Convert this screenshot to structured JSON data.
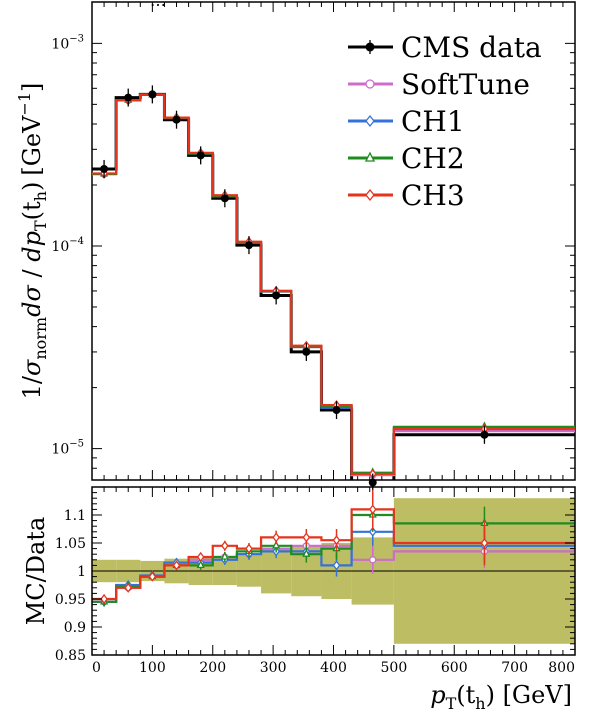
{
  "header_fragment": "…",
  "chart_data": [
    {
      "type": "line",
      "title": "",
      "ylabel_parts": {
        "prefix": "1/",
        "sigma": "σ",
        "norm": "norm",
        "d": "d",
        "sigma2": "σ",
        "slash": " / ",
        "p": "p",
        "T": "T",
        "arg": "(t",
        "h": "h",
        "close": ")",
        "unit": "[GeV",
        "exp": "−1",
        "unit_close": "]"
      },
      "yscale": "log",
      "ylim": [
        7e-06,
        0.0016
      ],
      "yticks": [
        {
          "value": 0.001,
          "base": "10",
          "exp": "−3"
        },
        {
          "value": 0.0001,
          "base": "10",
          "exp": "−4"
        },
        {
          "value": 1e-05,
          "base": "10",
          "exp": "−5"
        }
      ],
      "bin_edges": [
        0,
        40,
        80,
        120,
        160,
        200,
        240,
        280,
        330,
        380,
        430,
        500,
        800
      ],
      "data": {
        "name": "CMS data",
        "color": "#000000",
        "points": [
          {
            "x": 20,
            "y": 0.00024
          },
          {
            "x": 60,
            "y": 0.00054
          },
          {
            "x": 100,
            "y": 0.00056
          },
          {
            "x": 140,
            "y": 0.00042
          },
          {
            "x": 180,
            "y": 0.00028
          },
          {
            "x": 220,
            "y": 0.000172
          },
          {
            "x": 260,
            "y": 0.000101
          },
          {
            "x": 305,
            "y": 5.7e-05
          },
          {
            "x": 355,
            "y": 3e-05
          },
          {
            "x": 405,
            "y": 1.55e-05
          },
          {
            "x": 465,
            "y": 6.8e-06
          },
          {
            "x": 650,
            "y": 1.17e-05
          }
        ]
      },
      "series": [
        {
          "name": "SoftTune",
          "color": "#cc6ccc",
          "marker": "circle",
          "values": [
            0.000226,
            0.000523,
            0.000558,
            0.000428,
            0.000286,
            0.000176,
            0.000104,
            5.95e-05,
            3.17e-05,
            1.62e-05,
            7.4e-06,
            1.22e-05
          ]
        },
        {
          "name": "CH1",
          "color": "#3572d8",
          "marker": "diamond",
          "values": [
            0.000227,
            0.000524,
            0.000558,
            0.000429,
            0.000287,
            0.000176,
            0.000104,
            6e-05,
            3.19e-05,
            1.59e-05,
            7.5e-06,
            1.25e-05
          ]
        },
        {
          "name": "CH2",
          "color": "#1e8c20",
          "marker": "triangle",
          "values": [
            0.000227,
            0.000525,
            0.000557,
            0.000428,
            0.000286,
            0.000176,
            0.0001045,
            5.98e-05,
            3.17e-05,
            1.61e-05,
            7.6e-06,
            1.28e-05
          ]
        },
        {
          "name": "CH3",
          "color": "#e5331e",
          "marker": "diamond",
          "values": [
            0.000228,
            0.000524,
            0.00056,
            0.00043,
            0.000288,
            0.000178,
            0.000105,
            6.01e-05,
            3.22e-05,
            1.64e-05,
            7.5e-06,
            1.25e-05
          ]
        }
      ]
    },
    {
      "type": "line",
      "title": "",
      "ylabel": "MC/Data",
      "xlabel_parts": {
        "p": "p",
        "T": "T",
        "arg": "(t",
        "h": "h",
        "close": ")",
        "unit": " [GeV]"
      },
      "xlim": [
        0,
        800
      ],
      "xticks": [
        0,
        100,
        200,
        300,
        400,
        500,
        600,
        700,
        800
      ],
      "ylim": [
        0.85,
        1.15
      ],
      "yticks": [
        0.85,
        0.9,
        0.95,
        1,
        1.05,
        1.1
      ],
      "ytick_labels": [
        "0.85",
        "0.9",
        "0.95",
        "1",
        "1.05",
        "1.1"
      ],
      "band_color": "#bdbd63",
      "band_halfwidth": [
        0.02,
        0.02,
        0.018,
        0.022,
        0.025,
        0.025,
        0.028,
        0.04,
        0.045,
        0.05,
        0.06,
        0.13
      ],
      "bin_edges": [
        0,
        40,
        80,
        120,
        160,
        200,
        240,
        280,
        330,
        380,
        430,
        500,
        800
      ],
      "series": [
        {
          "name": "SoftTune",
          "color": "#cc6ccc",
          "values": [
            0.945,
            0.97,
            0.99,
            1.01,
            1.02,
            1.025,
            1.03,
            1.04,
            1.045,
            1.045,
            1.02,
            1.035
          ],
          "errors": [
            0.008,
            0.007,
            0.006,
            0.007,
            0.008,
            0.009,
            0.01,
            0.012,
            0.015,
            0.02,
            0.025,
            0.03
          ]
        },
        {
          "name": "CH1",
          "color": "#3572d8",
          "values": [
            0.945,
            0.975,
            0.992,
            1.015,
            1.015,
            1.02,
            1.03,
            1.035,
            1.035,
            1.01,
            1.07,
            1.045
          ],
          "errors": [
            0.008,
            0.007,
            0.006,
            0.007,
            0.008,
            0.009,
            0.01,
            0.012,
            0.015,
            0.02,
            0.025,
            0.03
          ]
        },
        {
          "name": "CH2",
          "color": "#1e8c20",
          "values": [
            0.945,
            0.972,
            0.99,
            1.01,
            1.01,
            1.025,
            1.035,
            1.045,
            1.03,
            1.04,
            1.1,
            1.085
          ],
          "errors": [
            0.008,
            0.007,
            0.006,
            0.007,
            0.008,
            0.009,
            0.01,
            0.012,
            0.015,
            0.02,
            0.03,
            0.03
          ]
        },
        {
          "name": "CH3",
          "color": "#e5331e",
          "values": [
            0.95,
            0.97,
            0.99,
            1.01,
            1.025,
            1.045,
            1.04,
            1.06,
            1.06,
            1.055,
            1.11,
            1.05
          ],
          "errors": [
            0.008,
            0.007,
            0.006,
            0.007,
            0.008,
            0.009,
            0.01,
            0.012,
            0.015,
            0.02,
            0.035,
            0.04
          ]
        }
      ]
    }
  ]
}
